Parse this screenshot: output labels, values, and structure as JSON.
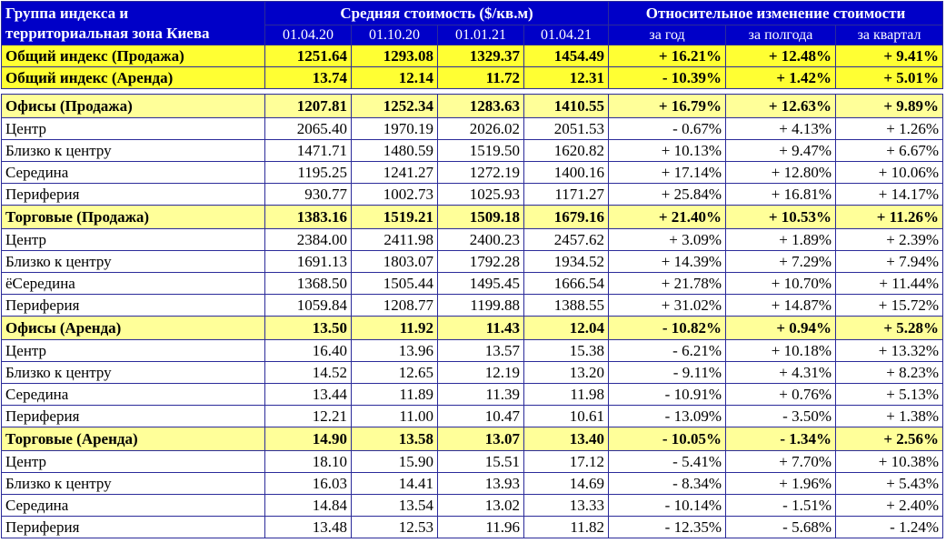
{
  "header": {
    "title_line1": "Группа индекса и",
    "title_line2": "территориальная зона Киева",
    "group_avg": "Средняя стоимость ($/кв.м)",
    "group_rel": "Относительное изменение стоимости",
    "dates": [
      "01.04.20",
      "01.10.20",
      "01.01.21",
      "01.04.21"
    ],
    "periods": [
      "за год",
      "за полгода",
      "за квартал"
    ]
  },
  "top_rows": [
    {
      "name": "Общий индекс (Продажа)",
      "v": [
        "1251.64",
        "1293.08",
        "1329.37",
        "1454.49"
      ],
      "c": [
        "+ 16.21%",
        "+ 12.48%",
        "+ 9.41%"
      ]
    },
    {
      "name": "Общий индекс (Аренда)",
      "v": [
        "13.74",
        "12.14",
        "11.72",
        "12.31"
      ],
      "c": [
        "- 10.39%",
        "+ 1.42%",
        "+ 5.01%"
      ]
    }
  ],
  "groups": [
    {
      "name": "Офисы (Продажа)",
      "v": [
        "1207.81",
        "1252.34",
        "1283.63",
        "1410.55"
      ],
      "c": [
        "+ 16.79%",
        "+ 12.63%",
        "+ 9.89%"
      ],
      "rows": [
        {
          "name": "Центр",
          "v": [
            "2065.40",
            "1970.19",
            "2026.02",
            "2051.53"
          ],
          "c": [
            "- 0.67%",
            "+ 4.13%",
            "+ 1.26%"
          ]
        },
        {
          "name": "Близко к центру",
          "v": [
            "1471.71",
            "1480.59",
            "1519.50",
            "1620.82"
          ],
          "c": [
            "+ 10.13%",
            "+ 9.47%",
            "+ 6.67%"
          ]
        },
        {
          "name": "Середина",
          "v": [
            "1195.25",
            "1241.27",
            "1272.19",
            "1400.16"
          ],
          "c": [
            "+ 17.14%",
            "+ 12.80%",
            "+ 10.06%"
          ]
        },
        {
          "name": "Периферия",
          "v": [
            "930.77",
            "1002.73",
            "1025.93",
            "1171.27"
          ],
          "c": [
            "+ 25.84%",
            "+ 16.81%",
            "+ 14.17%"
          ]
        }
      ]
    },
    {
      "name": "Торговые (Продажа)",
      "v": [
        "1383.16",
        "1519.21",
        "1509.18",
        "1679.16"
      ],
      "c": [
        "+ 21.40%",
        "+ 10.53%",
        "+ 11.26%"
      ],
      "rows": [
        {
          "name": "Центр",
          "v": [
            "2384.00",
            "2411.98",
            "2400.23",
            "2457.62"
          ],
          "c": [
            "+ 3.09%",
            "+ 1.89%",
            "+ 2.39%"
          ]
        },
        {
          "name": "Близко к центру",
          "v": [
            "1691.13",
            "1803.07",
            "1792.28",
            "1934.52"
          ],
          "c": [
            "+ 14.39%",
            "+ 7.29%",
            "+ 7.94%"
          ]
        },
        {
          "name": "ёСередина",
          "v": [
            "1368.50",
            "1505.44",
            "1495.45",
            "1666.54"
          ],
          "c": [
            "+ 21.78%",
            "+ 10.70%",
            "+ 11.44%"
          ]
        },
        {
          "name": "Периферия",
          "v": [
            "1059.84",
            "1208.77",
            "1199.88",
            "1388.55"
          ],
          "c": [
            "+ 31.02%",
            "+ 14.87%",
            "+ 15.72%"
          ]
        }
      ]
    },
    {
      "name": "Офисы (Аренда)",
      "v": [
        "13.50",
        "11.92",
        "11.43",
        "12.04"
      ],
      "c": [
        "- 10.82%",
        "+ 0.94%",
        "+ 5.28%"
      ],
      "rows": [
        {
          "name": "Центр",
          "v": [
            "16.40",
            "13.96",
            "13.57",
            "15.38"
          ],
          "c": [
            "- 6.21%",
            "+ 10.18%",
            "+ 13.32%"
          ]
        },
        {
          "name": "Близко к центру",
          "v": [
            "14.52",
            "12.65",
            "12.19",
            "13.20"
          ],
          "c": [
            "- 9.11%",
            "+ 4.31%",
            "+ 8.23%"
          ]
        },
        {
          "name": "Середина",
          "v": [
            "13.44",
            "11.89",
            "11.39",
            "11.98"
          ],
          "c": [
            "- 10.91%",
            "+ 0.76%",
            "+ 5.13%"
          ]
        },
        {
          "name": "Периферия",
          "v": [
            "12.21",
            "11.00",
            "10.47",
            "10.61"
          ],
          "c": [
            "- 13.09%",
            "- 3.50%",
            "+ 1.38%"
          ]
        }
      ]
    },
    {
      "name": "Торговые (Аренда)",
      "v": [
        "14.90",
        "13.58",
        "13.07",
        "13.40"
      ],
      "c": [
        "- 10.05%",
        "- 1.34%",
        "+ 2.56%"
      ],
      "rows": [
        {
          "name": "Центр",
          "v": [
            "18.10",
            "15.90",
            "15.51",
            "17.12"
          ],
          "c": [
            "- 5.41%",
            "+ 7.70%",
            "+ 10.38%"
          ]
        },
        {
          "name": "Близко к центру",
          "v": [
            "16.03",
            "14.41",
            "13.93",
            "14.69"
          ],
          "c": [
            "- 8.34%",
            "+ 1.96%",
            "+ 5.43%"
          ]
        },
        {
          "name": "Середина",
          "v": [
            "14.84",
            "13.54",
            "13.02",
            "13.33"
          ],
          "c": [
            "- 10.14%",
            "- 1.51%",
            "+ 2.40%"
          ]
        },
        {
          "name": "Периферия",
          "v": [
            "13.48",
            "12.53",
            "11.96",
            "11.82"
          ],
          "c": [
            "- 12.35%",
            "- 5.68%",
            "- 1.24%"
          ]
        }
      ]
    }
  ],
  "colors": {
    "header_bg": "#0000c8",
    "header_text": "#ffffff",
    "total_row_bg": "#ffff33",
    "group_row_bg": "#ffff99",
    "border": "#2b2b9a"
  }
}
